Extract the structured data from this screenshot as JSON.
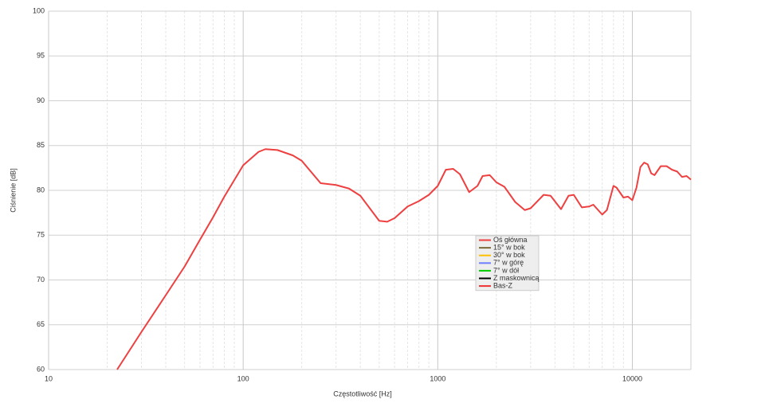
{
  "chart_data": {
    "type": "line",
    "x_label": "Częstotliwość [Hz]",
    "y_label": "Ciśnienie [dB]",
    "x_scale": "log",
    "grid": true,
    "minor_grid": true,
    "legend_position": "center-right",
    "xlim": [
      10,
      20000
    ],
    "xticks": [
      10,
      100,
      1000,
      10000
    ],
    "ylim": [
      60,
      100
    ],
    "yticks": [
      60,
      65,
      70,
      75,
      80,
      85,
      90,
      95,
      100
    ],
    "x": [
      22.5,
      30,
      40,
      50,
      60,
      70,
      80,
      100,
      120,
      130,
      150,
      180,
      200,
      250,
      300,
      350,
      400,
      500,
      550,
      600,
      700,
      800,
      900,
      1000,
      1100,
      1200,
      1300,
      1450,
      1600,
      1700,
      1850,
      2000,
      2200,
      2500,
      2800,
      3000,
      3500,
      3800,
      4300,
      4700,
      5000,
      5500,
      6000,
      6300,
      7000,
      7400,
      8000,
      8300,
      9000,
      9500,
      10000,
      10500,
      11000,
      11500,
      12000,
      12500,
      13000,
      14000,
      15000,
      16000,
      17000,
      18000,
      19000,
      20000
    ],
    "series": [
      {
        "name": "Oś główna",
        "color": "#ee4040",
        "values": [
          60,
          64.2,
          68.3,
          71.5,
          74.5,
          77,
          79.3,
          82.8,
          84.3,
          84.6,
          84.5,
          83.9,
          83.3,
          80.8,
          80.6,
          80.2,
          79.4,
          76.6,
          76.5,
          76.9,
          78.2,
          78.8,
          79.5,
          80.5,
          82.3,
          82.4,
          81.8,
          79.8,
          80.5,
          81.6,
          81.7,
          80.9,
          80.4,
          78.7,
          77.8,
          78.0,
          79.5,
          79.4,
          77.9,
          79.4,
          79.5,
          78.1,
          78.2,
          78.4,
          77.3,
          77.8,
          80.5,
          80.3,
          79.2,
          79.3,
          78.9,
          80.3,
          82.6,
          83.1,
          82.9,
          81.9,
          81.7,
          82.7,
          82.7,
          82.3,
          82.1,
          81.5,
          81.6,
          81.2
        ]
      },
      {
        "name": "15° w bok",
        "color": "#7f6a3a"
      },
      {
        "name": "30° w bok",
        "color": "#ffbf00"
      },
      {
        "name": "7° w górę",
        "color": "#6f7fff"
      },
      {
        "name": "7° w dół",
        "color": "#00cc00"
      },
      {
        "name": "Z maskownicą",
        "color": "#000000"
      },
      {
        "name": "Bas-Z",
        "color": "#ee3030"
      }
    ]
  }
}
